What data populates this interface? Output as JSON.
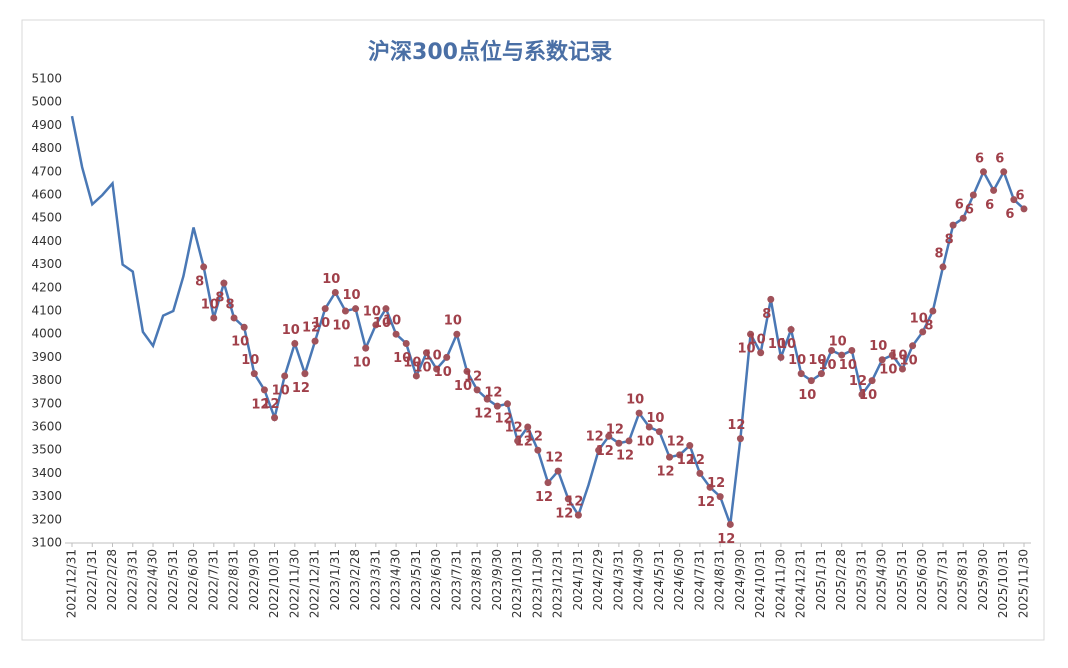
{
  "chart_data": {
    "type": "line",
    "title": "沪深300点位与系数记录",
    "categories": [
      "2021/12/31",
      null,
      "2022/1/31",
      null,
      "2022/2/28",
      null,
      "2022/3/31",
      null,
      "2022/4/30",
      null,
      "2022/5/31",
      null,
      "2022/6/30",
      null,
      "2022/7/31",
      null,
      "2022/8/31",
      null,
      "2022/9/30",
      null,
      "2022/10/31",
      null,
      "2022/11/30",
      null,
      "2022/12/31",
      null,
      "2023/1/31",
      null,
      "2023/2/28",
      null,
      "2023/3/31",
      null,
      "2023/4/30",
      null,
      "2023/5/31",
      null,
      "2023/6/30",
      null,
      "2023/7/31",
      null,
      "2023/8/31",
      null,
      "2023/9/30",
      null,
      "2023/10/31",
      null,
      "2023/11/30",
      null,
      "2023/12/31",
      null,
      "2024/1/31",
      null,
      "2024/2/29",
      null,
      "2024/3/31",
      null,
      "2024/4/30",
      null,
      "2024/5/31",
      null,
      "2024/6/30",
      null,
      "2024/7/31",
      null,
      "2024/8/31",
      null,
      "2024/9/30",
      null,
      "2024/10/31",
      null,
      "2024/11/30",
      null,
      "2024/12/31",
      null,
      "2025/1/31",
      null,
      "2025/2/28",
      null,
      "2025/3/31",
      null,
      "2025/4/30",
      null,
      "2025/5/31",
      null,
      "2025/6/30",
      null,
      "2025/7/31",
      null,
      "2025/8/31",
      null,
      "2025/9/30",
      null,
      "2025/10/31",
      null,
      "2025/11/30"
    ],
    "series": [
      {
        "color": "#4a78b5",
        "values": [
          4940,
          4720,
          4560,
          4600,
          4650,
          4300,
          4270,
          4010,
          3950,
          4080,
          4100,
          4250,
          4460,
          4290,
          4070,
          4220,
          4070,
          4030,
          3830,
          3760,
          3640,
          3820,
          3960,
          3830,
          3970,
          4110,
          4180,
          4100,
          4110,
          3940,
          4040,
          4110,
          4000,
          3960,
          3820,
          3920,
          3850,
          3900,
          4000,
          3840,
          3760,
          3720,
          3690,
          3700,
          3540,
          3600,
          3500,
          3360,
          3410,
          3290,
          3220,
          3350,
          3500,
          3560,
          3530,
          3540,
          3660,
          3600,
          3580,
          3470,
          3480,
          3520,
          3400,
          3340,
          3300,
          3180,
          3550,
          4000,
          3920,
          4150,
          3900,
          4020,
          3830,
          3800,
          3830,
          3930,
          3910,
          3930,
          3740,
          3800,
          3890,
          3910,
          3850,
          3950,
          4010,
          4100,
          4290,
          4470,
          4500,
          4600,
          4700,
          4620,
          4700,
          4580,
          4540
        ],
        "point_labels": [
          null,
          null,
          null,
          null,
          null,
          null,
          null,
          null,
          null,
          null,
          null,
          null,
          null,
          "8",
          "10",
          "8",
          "8",
          "10",
          "10",
          "12",
          "12",
          "10",
          "10",
          "12",
          "12",
          "10",
          "10",
          "10",
          "10",
          "10",
          "10",
          "10",
          "10",
          "10",
          "10",
          "10",
          "10",
          "10",
          "10",
          "10",
          "12",
          "12",
          "12",
          "12",
          "12",
          "12",
          "12",
          "12",
          "12",
          "12",
          "12",
          null,
          "12",
          "12",
          "12",
          "12",
          "10",
          "10",
          "10",
          "12",
          "12",
          "12",
          "12",
          "12",
          "12",
          "12",
          "12",
          "10",
          "10",
          "8",
          "10",
          "10",
          "10",
          "10",
          "10",
          "10",
          "10",
          "10",
          "12",
          "10",
          "10",
          "10",
          "10",
          "10",
          "10",
          "8",
          "8",
          "8",
          "6",
          "6",
          "6",
          "6",
          "6",
          "6",
          "6"
        ]
      }
    ],
    "marker_color": "#a0525a",
    "label_color": "#a0404a",
    "ylim": [
      3100,
      5100
    ],
    "yticks": [
      3100,
      3200,
      3300,
      3400,
      3500,
      3600,
      3700,
      3800,
      3900,
      4000,
      4100,
      4200,
      4300,
      4400,
      4500,
      4600,
      4700,
      4800,
      4900,
      5000,
      5100
    ],
    "grid": false
  }
}
